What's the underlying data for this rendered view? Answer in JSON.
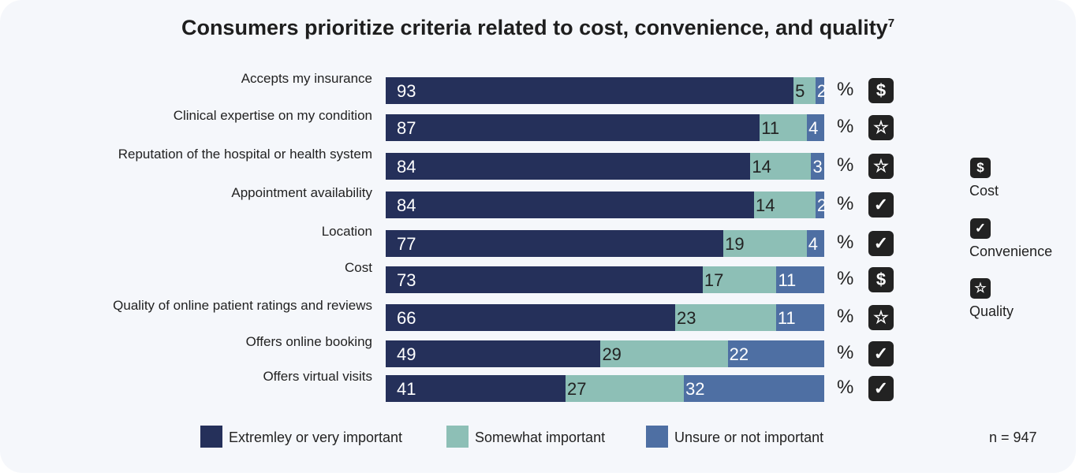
{
  "chart_data": {
    "type": "bar",
    "orientation": "horizontal",
    "stacked": true,
    "title": "Consumers prioritize criteria related to cost, convenience, and quality",
    "title_footnote": "7",
    "unit": "%",
    "categories": [
      "Accepts my insurance",
      "Clinical expertise on my condition",
      "Reputation of the hospital or health system",
      "Appointment availability",
      "Location",
      "Cost",
      "Quality of online patient ratings and reviews",
      "Offers online booking",
      "Offers virtual visits"
    ],
    "category_icons": [
      "cost",
      "quality",
      "quality",
      "convenience",
      "convenience",
      "cost",
      "quality",
      "convenience",
      "convenience"
    ],
    "series": [
      {
        "name": "Extremley or very important",
        "color": "#25305a",
        "values": [
          93,
          87,
          84,
          84,
          77,
          73,
          66,
          49,
          41
        ]
      },
      {
        "name": "Somewhat important",
        "color": "#8dbfb6",
        "values": [
          5,
          11,
          14,
          14,
          19,
          17,
          23,
          29,
          27
        ]
      },
      {
        "name": "Unsure or not important",
        "color": "#4e6fa3",
        "values": [
          2,
          4,
          3,
          2,
          4,
          11,
          11,
          22,
          32
        ]
      }
    ],
    "legend_placement": "bottom",
    "icon_legend": [
      {
        "key": "cost",
        "label": "Cost",
        "icon": "dollar-icon"
      },
      {
        "key": "convenience",
        "label": "Convenience",
        "icon": "check-icon"
      },
      {
        "key": "quality",
        "label": "Quality",
        "icon": "star-icon"
      }
    ],
    "note": "n = 947"
  }
}
